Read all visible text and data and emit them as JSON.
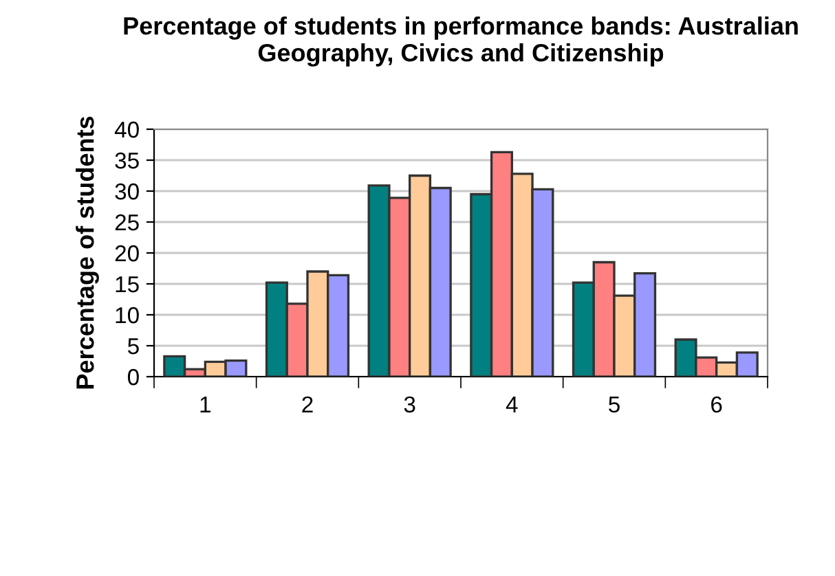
{
  "chart_data": {
    "type": "bar",
    "title": "Percentage of students in performance bands: Australian Geography, Civics and Citizenship",
    "ylabel": "Percentage of students",
    "categories": [
      "1",
      "2",
      "3",
      "4",
      "5",
      "6"
    ],
    "series": [
      {
        "color": "#008080",
        "values": [
          3.3,
          15.2,
          30.9,
          29.5,
          15.2,
          6.0
        ]
      },
      {
        "color": "#ff8080",
        "values": [
          1.2,
          11.8,
          28.9,
          36.3,
          18.5,
          3.1
        ]
      },
      {
        "color": "#ffcc99",
        "values": [
          2.4,
          17.0,
          32.5,
          32.8,
          13.1,
          2.3
        ]
      },
      {
        "color": "#9999ff",
        "values": [
          2.6,
          16.4,
          30.5,
          30.3,
          16.7,
          3.9
        ]
      }
    ],
    "ylim": [
      0,
      40
    ],
    "yticks": [
      0,
      5,
      10,
      15,
      20,
      25,
      30,
      35,
      40
    ],
    "grid": "y",
    "legend": false
  }
}
